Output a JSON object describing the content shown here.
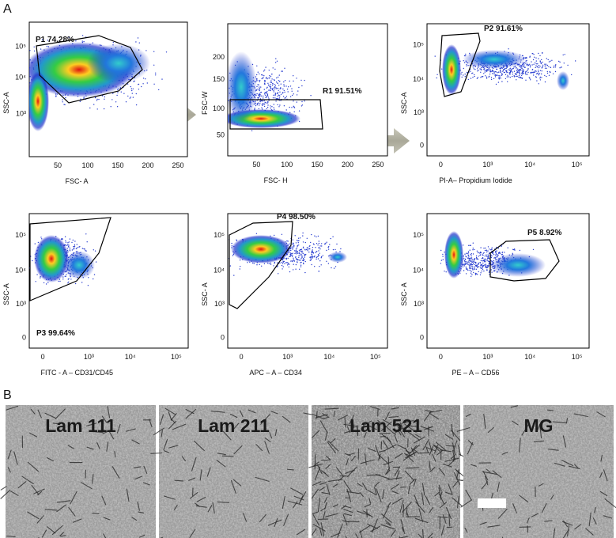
{
  "figure": {
    "panel_a_label": "A",
    "panel_b_label": "B",
    "plots": [
      {
        "y_label": "SSC-A",
        "x_label": "FSC- A",
        "gate_label": "P1 74.28%",
        "x_ticks": [
          "50",
          "100",
          "150",
          "200",
          "250"
        ],
        "y_ticks": [
          "10⁵",
          "10⁴",
          "10³"
        ]
      },
      {
        "y_label": "FSC-W",
        "x_label": "FSC- H",
        "gate_label": "R1 91.51%",
        "x_ticks": [
          "50",
          "100",
          "150",
          "200",
          "250"
        ],
        "y_ticks": [
          "200",
          "150",
          "100",
          "50"
        ]
      },
      {
        "y_label": "SSC-A",
        "x_label": "PI-A– Propidium Iodide",
        "gate_label": "P2 91.61%",
        "x_ticks": [
          "0",
          "10³",
          "10⁴",
          "10⁵"
        ],
        "y_ticks": [
          "10⁵",
          "10⁴",
          "10³",
          "0"
        ]
      },
      {
        "y_label": "SSC-A",
        "x_label": "FITC - A – CD31/CD45",
        "gate_label": "P3 99.64%",
        "x_ticks": [
          "0",
          "10³",
          "10⁴",
          "10⁵"
        ],
        "y_ticks": [
          "10⁵",
          "10⁴",
          "10³",
          "0"
        ]
      },
      {
        "y_label": "SSC- A",
        "x_label": "APC – A – CD34",
        "gate_label": "P4 98.50%",
        "x_ticks": [
          "0",
          "10³",
          "10⁴",
          "10⁵"
        ],
        "y_ticks": [
          "10⁵",
          "10⁴",
          "10³",
          "0"
        ]
      },
      {
        "y_label": "SSC- A",
        "x_label": "PE – A – CD56",
        "gate_label": "P5 8.92%",
        "x_ticks": [
          "0",
          "10³",
          "10⁴",
          "10⁵"
        ],
        "y_ticks": [
          "10⁵",
          "10⁴",
          "10³",
          "0"
        ]
      }
    ],
    "images": [
      {
        "label": "Lam 111"
      },
      {
        "label": "Lam 211"
      },
      {
        "label": "Lam 521"
      },
      {
        "label": "MG"
      }
    ]
  }
}
